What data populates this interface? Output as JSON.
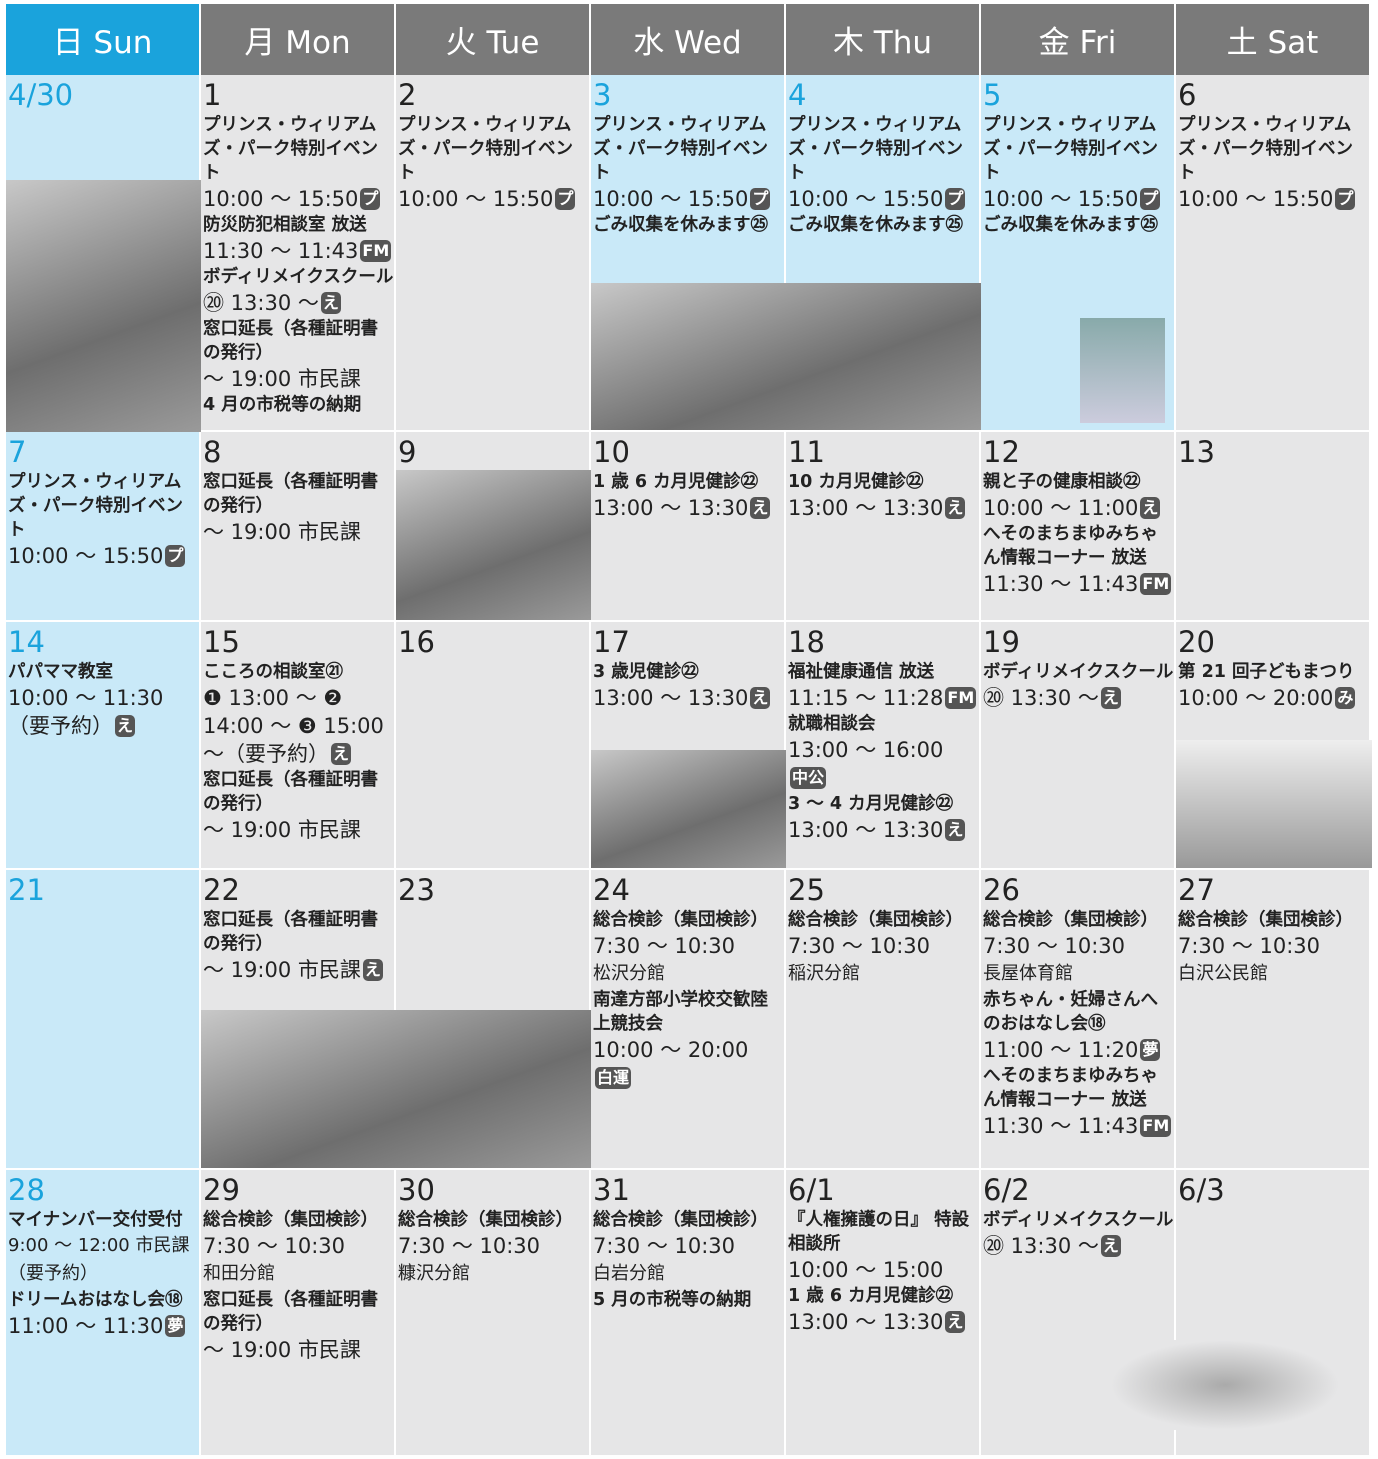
{
  "header": {
    "days": [
      "日 Sun",
      "月 Mon",
      "火 Tue",
      "水 Wed",
      "木 Thu",
      "金 Fri",
      "土 Sat"
    ]
  },
  "weeks": [
    {
      "days": [
        {
          "date": "4/30",
          "holiday": true
        },
        {
          "date": "1",
          "lines": [
            {
              "t": "プリンス・ウィリアムズ・パーク特別イベント",
              "b": true
            },
            {
              "t": "10:00 ～ 15:50",
              "k": "プ"
            },
            {
              "t": "防災防犯相談室 放送",
              "b": true
            },
            {
              "t": "11:30 ～ 11:43",
              "k": "FM"
            },
            {
              "t": "ボディリメイクスクール",
              "b": true
            },
            {
              "t": "⑳ 13:30 ～",
              "k": "え"
            },
            {
              "t": "窓口延長（各種証明書の発行）",
              "b": true
            },
            {
              "t": "～ 19:00 市民課"
            },
            {
              "t": "4 月の市税等の納期",
              "b": true
            }
          ]
        },
        {
          "date": "2",
          "lines": [
            {
              "t": "プリンス・ウィリアムズ・パーク特別イベント",
              "b": true
            },
            {
              "t": "10:00 ～ 15:50",
              "k": "プ"
            }
          ]
        },
        {
          "date": "3",
          "holiday": true,
          "lines": [
            {
              "t": "プリンス・ウィリアムズ・パーク特別イベント",
              "b": true
            },
            {
              "t": "10:00 ～ 15:50",
              "k": "プ"
            },
            {
              "t": "ごみ収集を休みます㉕",
              "b": true
            }
          ]
        },
        {
          "date": "4",
          "holiday": true,
          "lines": [
            {
              "t": "プリンス・ウィリアムズ・パーク特別イベント",
              "b": true
            },
            {
              "t": "10:00 ～ 15:50",
              "k": "プ"
            },
            {
              "t": "ごみ収集を休みます㉕",
              "b": true
            }
          ]
        },
        {
          "date": "5",
          "holiday": true,
          "lines": [
            {
              "t": "プリンス・ウィリアムズ・パーク特別イベント",
              "b": true
            },
            {
              "t": "10:00 ～ 15:50",
              "k": "プ"
            },
            {
              "t": "ごみ収集を休みます㉕",
              "b": true
            }
          ]
        },
        {
          "date": "6",
          "lines": [
            {
              "t": "プリンス・ウィリアムズ・パーク特別イベント",
              "b": true
            },
            {
              "t": "10:00 ～ 15:50",
              "k": "プ"
            }
          ]
        }
      ]
    },
    {
      "days": [
        {
          "date": "7",
          "holiday": true,
          "lines": [
            {
              "t": "プリンス・ウィリアムズ・パーク特別イベント",
              "b": true
            },
            {
              "t": "10:00 ～ 15:50",
              "k": "プ"
            }
          ]
        },
        {
          "date": "8",
          "lines": [
            {
              "t": "窓口延長（各種証明書の発行）",
              "b": true
            },
            {
              "t": "～ 19:00 市民課"
            }
          ]
        },
        {
          "date": "9"
        },
        {
          "date": "10",
          "lines": [
            {
              "t": "1 歳 6 カ月児健診㉒",
              "b": true
            },
            {
              "t": "13:00 ～ 13:30",
              "k": "え"
            }
          ]
        },
        {
          "date": "11",
          "lines": [
            {
              "t": "10 カ月児健診㉒",
              "b": true
            },
            {
              "t": "13:00 ～ 13:30",
              "k": "え"
            }
          ]
        },
        {
          "date": "12",
          "lines": [
            {
              "t": "親と子の健康相談㉒",
              "b": true
            },
            {
              "t": "10:00 ～ 11:00",
              "k": "え"
            },
            {
              "t": "へそのまちまゆみちゃん情報コーナー 放送",
              "b": true
            },
            {
              "t": "11:30 ～ 11:43",
              "k": "FM"
            }
          ]
        },
        {
          "date": "13"
        }
      ]
    },
    {
      "days": [
        {
          "date": "14",
          "holiday": true,
          "lines": [
            {
              "t": "パパママ教室",
              "b": true
            },
            {
              "t": "10:00 ～ 11:30（要予約）",
              "k": "え"
            }
          ]
        },
        {
          "date": "15",
          "lines": [
            {
              "t": "こころの相談室㉑",
              "b": true
            },
            {
              "t": "❶ 13:00 ～ ❷ 14:00 ～ ❸ 15:00 ～（要予約）",
              "k": "え"
            },
            {
              "t": "窓口延長（各種証明書の発行）",
              "b": true
            },
            {
              "t": "～ 19:00 市民課"
            }
          ]
        },
        {
          "date": "16"
        },
        {
          "date": "17",
          "lines": [
            {
              "t": "3 歳児健診㉒",
              "b": true
            },
            {
              "t": "13:00 ～ 13:30",
              "k": "え"
            }
          ]
        },
        {
          "date": "18",
          "lines": [
            {
              "t": "福祉健康通信 放送",
              "b": true
            },
            {
              "t": "11:15 ～ 11:28",
              "k": "FM"
            },
            {
              "t": "就職相談会",
              "b": true
            },
            {
              "t": "13:00 ～ 16:00",
              "k": "中公"
            },
            {
              "t": "3 ～ 4 カ月児健診㉒",
              "b": true
            },
            {
              "t": "13:00 ～ 13:30",
              "k": "え"
            }
          ]
        },
        {
          "date": "19",
          "lines": [
            {
              "t": "ボディリメイクスクール",
              "b": true
            },
            {
              "t": "⑳ 13:30 ～",
              "k": "え"
            }
          ]
        },
        {
          "date": "20",
          "lines": [
            {
              "t": "第 21 回子どもまつり",
              "b": true
            },
            {
              "t": "10:00 ～ 20:00",
              "k": "み"
            }
          ]
        }
      ]
    },
    {
      "days": [
        {
          "date": "21",
          "holiday": true
        },
        {
          "date": "22",
          "lines": [
            {
              "t": "窓口延長（各種証明書の発行）",
              "b": true
            },
            {
              "t": "～ 19:00 市民課",
              "k": "え"
            }
          ]
        },
        {
          "date": "23"
        },
        {
          "date": "24",
          "lines": [
            {
              "t": "総合検診（集団検診）",
              "b": true
            },
            {
              "t": "7:30 ～ 10:30"
            },
            {
              "t": "松沢分館",
              "s": true
            },
            {
              "t": "南達方部小学校交歓陸上競技会",
              "b": true
            },
            {
              "t": "10:00 ～ 20:00",
              "k": "白運"
            }
          ]
        },
        {
          "date": "25",
          "lines": [
            {
              "t": "総合検診（集団検診）",
              "b": true
            },
            {
              "t": "7:30 ～ 10:30"
            },
            {
              "t": "稲沢分館",
              "s": true
            }
          ]
        },
        {
          "date": "26",
          "lines": [
            {
              "t": "総合検診（集団検診）",
              "b": true
            },
            {
              "t": "7:30 ～ 10:30"
            },
            {
              "t": "長屋体育館",
              "s": true
            },
            {
              "t": "赤ちゃん・妊婦さんへのおはなし会⑱",
              "b": true
            },
            {
              "t": "11:00 ～ 11:20",
              "k": "夢"
            },
            {
              "t": "へそのまちまゆみちゃん情報コーナー 放送",
              "b": true
            },
            {
              "t": "11:30 ～ 11:43",
              "k": "FM"
            }
          ]
        },
        {
          "date": "27",
          "lines": [
            {
              "t": "総合検診（集団検診）",
              "b": true
            },
            {
              "t": "7:30 ～ 10:30"
            },
            {
              "t": "白沢公民館",
              "s": true
            }
          ]
        }
      ]
    },
    {
      "days": [
        {
          "date": "28",
          "holiday": true,
          "lines": [
            {
              "t": "マイナンバー交付受付",
              "b": true
            },
            {
              "t": "9:00 ～ 12:00 市民課（要予約）",
              "s": true
            },
            {
              "t": "ドリームおはなし会⑱",
              "b": true
            },
            {
              "t": "11:00 ～ 11:30",
              "k": "夢"
            }
          ]
        },
        {
          "date": "29",
          "lines": [
            {
              "t": "総合検診（集団検診）",
              "b": true
            },
            {
              "t": "7:30 ～ 10:30"
            },
            {
              "t": "和田分館",
              "s": true
            },
            {
              "t": "窓口延長（各種証明書の発行）",
              "b": true
            },
            {
              "t": "～ 19:00 市民課"
            }
          ]
        },
        {
          "date": "30",
          "lines": [
            {
              "t": "総合検診（集団検診）",
              "b": true
            },
            {
              "t": "7:30 ～ 10:30"
            },
            {
              "t": "糠沢分館",
              "s": true
            }
          ]
        },
        {
          "date": "31",
          "lines": [
            {
              "t": "総合検診（集団検診）",
              "b": true
            },
            {
              "t": "7:30 ～ 10:30"
            },
            {
              "t": "白岩分館",
              "s": true
            },
            {
              "t": "5 月の市税等の納期",
              "b": true
            }
          ]
        },
        {
          "date": "6/1",
          "lines": [
            {
              "t": "『人権擁護の日』 特設相談所",
              "b": true
            },
            {
              "t": "10:00 ～ 15:00"
            },
            {
              "t": "1 歳 6 カ月児健診㉒",
              "b": true
            },
            {
              "t": "13:00 ～ 13:30",
              "k": "え"
            }
          ]
        },
        {
          "date": "6/2",
          "lines": [
            {
              "t": "ボディリメイクスクール",
              "b": true
            },
            {
              "t": "⑳ 13:30 ～",
              "k": "え"
            }
          ]
        },
        {
          "date": "6/3"
        }
      ]
    }
  ]
}
